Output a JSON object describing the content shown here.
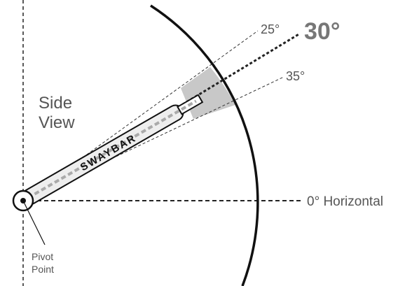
{
  "labels": {
    "angle_25": "25°",
    "angle_30": "30°",
    "angle_35": "35°",
    "horizontal": "0° Horizontal",
    "view": [
      "Side",
      "View"
    ],
    "bar": "SWAYBAR",
    "pivot": [
      "Pivot",
      "Point"
    ]
  }
}
